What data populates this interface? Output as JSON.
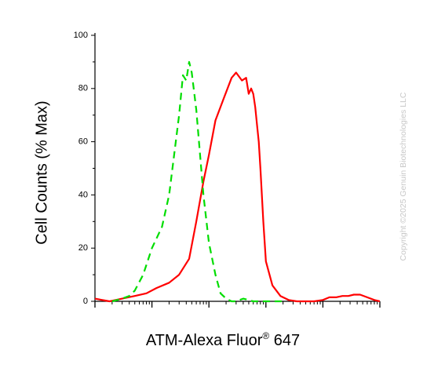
{
  "chart_data": {
    "type": "line",
    "xlabel": "ATM-Alexa Fluor",
    "xlabel_superscript": "®",
    "xlabel_suffix": " 647",
    "ylabel": "Cell Counts (% Max)",
    "x_scale": "log",
    "xlim": [
      100,
      10000000
    ],
    "ylim": [
      0,
      100
    ],
    "y_ticks": [
      "0",
      "20",
      "40",
      "60",
      "80",
      "100"
    ],
    "grid": false,
    "series": [
      {
        "color": "#ff0000",
        "style": "solid",
        "x": [
          100,
          180,
          300,
          500,
          800,
          1200,
          2000,
          3000,
          4500,
          6000,
          8000,
          10000,
          13000,
          18000,
          25000,
          30000,
          38000,
          45000,
          50000,
          55000,
          60000,
          65000,
          70000,
          75000,
          80000,
          90000,
          100000,
          130000,
          180000,
          250000,
          350000,
          500000,
          700000,
          1000000,
          1300000,
          1700000,
          2200000,
          2800000,
          3500000,
          4500000,
          6000000,
          8000000,
          10000000
        ],
        "y": [
          1,
          0,
          1,
          2,
          3,
          5,
          7,
          10,
          16,
          30,
          45,
          55,
          68,
          76,
          84,
          86,
          83,
          84,
          78,
          80,
          78,
          73,
          66,
          60,
          50,
          30,
          15,
          6,
          2,
          0.5,
          0,
          0,
          0,
          0.5,
          1.5,
          1.5,
          2,
          2,
          2.5,
          2.5,
          1.5,
          0.5,
          0
        ]
      },
      {
        "color": "#00dd00",
        "style": "dashed",
        "x": [
          200,
          300,
          400,
          500,
          700,
          1000,
          1500,
          2000,
          3000,
          3500,
          4000,
          4500,
          5000,
          6000,
          8000,
          10000,
          13000,
          16000,
          20000,
          25000,
          30000,
          40000,
          60000,
          100000,
          200000
        ],
        "y": [
          0,
          1,
          2,
          4,
          10,
          20,
          28,
          40,
          70,
          85,
          83,
          90,
          86,
          72,
          40,
          22,
          10,
          3,
          1,
          0,
          0,
          1,
          0,
          0,
          0
        ]
      }
    ]
  },
  "watermark": "Copyright ©2025 Genuin Biotechnologies LLC"
}
